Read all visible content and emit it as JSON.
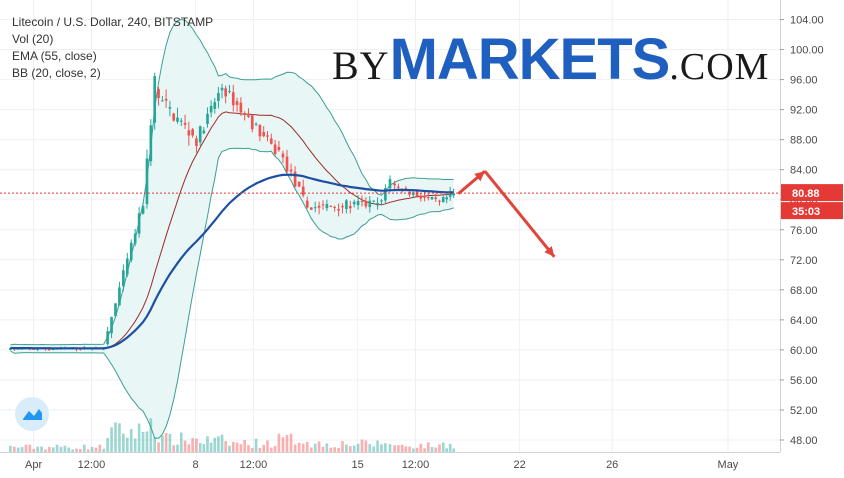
{
  "legend": {
    "symbol": "Litecoin / U.S. Dollar, 240, BITSTAMP",
    "vol": "Vol (20)",
    "ema": "EMA (55, close)",
    "bb": "BB (20, close, 2)"
  },
  "brand": {
    "by": "BY",
    "markets": "MARKETS",
    "com": ".COM"
  },
  "price_badge": "80.88",
  "timer_badge": "35:03",
  "colors": {
    "up": "#26a69a",
    "down": "#ef5350",
    "ema": "#1e4fa3",
    "bb_band": "#3c9e94",
    "bb_basis": "#9c2a2a",
    "bb_fill": "#e8f6f5",
    "price_line": "#e53935",
    "arrow": "#e0443a",
    "grid": "#eef0f3",
    "axis_text": "#4a4a4a"
  },
  "chart_data": {
    "type": "candlestick",
    "title": "Litecoin / U.S. Dollar, 240, BITSTAMP",
    "timeframe": "240",
    "exchange": "BITSTAMP",
    "indicators": [
      "Vol (20)",
      "EMA (55, close)",
      "BB (20, close, 2)"
    ],
    "y_axis": {
      "ticks": [
        "104.00",
        "100.00",
        "96.00",
        "92.00",
        "88.00",
        "84.00",
        "80.00",
        "76.00",
        "72.00",
        "68.00",
        "64.00",
        "60.00",
        "56.00",
        "52.00",
        "48.00"
      ],
      "range": [
        46.4,
        106.6
      ]
    },
    "x_axis": {
      "ticks": [
        {
          "label": "Apr",
          "day": 1
        },
        {
          "label": "12:00",
          "day": 3.5
        },
        {
          "label": "8",
          "day": 8
        },
        {
          "label": "12:00",
          "day": 10.5
        },
        {
          "label": "15",
          "day": 15
        },
        {
          "label": "12:00",
          "day": 17.5
        },
        {
          "label": "22",
          "day": 22
        },
        {
          "label": "26",
          "day": 26
        },
        {
          "label": "May",
          "day": 31
        }
      ],
      "range_days": [
        -0.45,
        33.25
      ]
    },
    "last_price": 80.88,
    "forecast_arrow": {
      "from": {
        "day": 19.35,
        "price": 80.8
      },
      "peak": {
        "day": 20.5,
        "price": 83.8
      },
      "to": {
        "day": 23.5,
        "price": 72.4
      }
    },
    "segments": [
      {
        "from": {
          "day": 0.0,
          "price": 60.1
        },
        "to": {
          "day": 4.2,
          "price": 60.2
        },
        "amp": 0.35,
        "vol": 0.8
      },
      {
        "from": {
          "day": 4.2,
          "price": 60.5
        },
        "to": {
          "day": 5.9,
          "price": 79.5
        },
        "amp": 1.2,
        "vol": 3.2
      },
      {
        "from": {
          "day": 5.9,
          "price": 79.5
        },
        "to": {
          "day": 6.4,
          "price": 96.0
        },
        "amp": 1.8,
        "vol": 5.0
      },
      {
        "from": {
          "day": 6.4,
          "price": 94.0
        },
        "to": {
          "day": 8.2,
          "price": 88.0
        },
        "amp": 2.0,
        "vol": 2.0
      },
      {
        "from": {
          "day": 8.2,
          "price": 88.0
        },
        "to": {
          "day": 9.3,
          "price": 95.0
        },
        "amp": 1.6,
        "vol": 1.8
      },
      {
        "from": {
          "day": 9.3,
          "price": 95.0
        },
        "to": {
          "day": 11.6,
          "price": 86.5
        },
        "amp": 1.5,
        "vol": 1.4
      },
      {
        "from": {
          "day": 11.6,
          "price": 87.5
        },
        "to": {
          "day": 13.0,
          "price": 79.0
        },
        "amp": 1.4,
        "vol": 2.0
      },
      {
        "from": {
          "day": 13.0,
          "price": 79.0
        },
        "to": {
          "day": 16.2,
          "price": 79.5
        },
        "amp": 1.3,
        "vol": 1.3
      },
      {
        "from": {
          "day": 16.2,
          "price": 80.0
        },
        "to": {
          "day": 16.6,
          "price": 83.0
        },
        "amp": 1.0,
        "vol": 1.6
      },
      {
        "from": {
          "day": 16.6,
          "price": 82.0
        },
        "to": {
          "day": 18.7,
          "price": 79.5
        },
        "amp": 1.0,
        "vol": 1.0
      },
      {
        "from": {
          "day": 18.7,
          "price": 79.5
        },
        "to": {
          "day": 19.3,
          "price": 80.88
        },
        "amp": 1.1,
        "vol": 1.2
      }
    ]
  }
}
